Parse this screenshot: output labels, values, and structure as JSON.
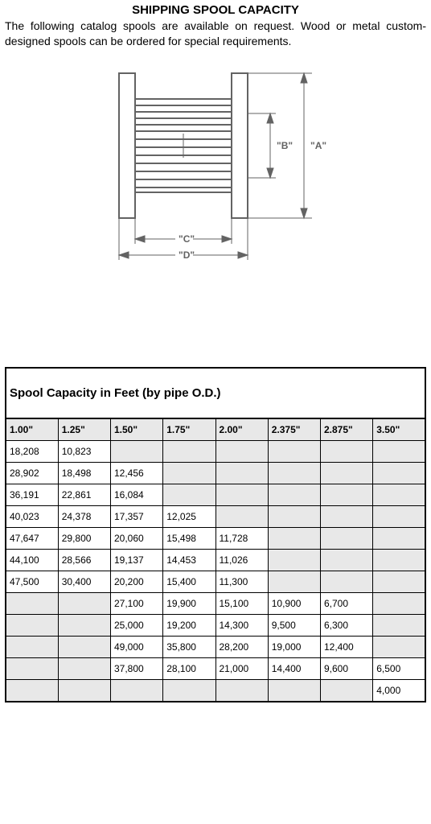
{
  "title": "SHIPPING SPOOL CAPACITY",
  "intro": "The following catalog spools are available on request. Wood or metal custom-designed spools can be ordered for special requirements.",
  "diagram": {
    "labels": {
      "A": "\"A\"",
      "B": "\"B\"",
      "C": "\"C\"",
      "D": "\"D\""
    },
    "stroke": "#636363",
    "fill": "#ffffff",
    "text_color": "#636363"
  },
  "table": {
    "caption": "Spool Capacity in Feet (by pipe O.D.)",
    "columns": [
      "1.00\"",
      "1.25\"",
      "1.50\"",
      "1.75\"",
      "2.00\"",
      "2.375\"",
      "2.875\"",
      "3.50\""
    ],
    "rows": [
      [
        "18,208",
        "10,823",
        "",
        "",
        "",
        "",
        "",
        ""
      ],
      [
        "28,902",
        "18,498",
        "12,456",
        "",
        "",
        "",
        "",
        ""
      ],
      [
        "36,191",
        "22,861",
        "16,084",
        "",
        "",
        "",
        "",
        ""
      ],
      [
        "40,023",
        "24,378",
        "17,357",
        "12,025",
        "",
        "",
        "",
        ""
      ],
      [
        "47,647",
        "29,800",
        "20,060",
        "15,498",
        "11,728",
        "",
        "",
        ""
      ],
      [
        "44,100",
        "28,566",
        "19,137",
        "14,453",
        "11,026",
        "",
        "",
        ""
      ],
      [
        "47,500",
        "30,400",
        "20,200",
        "15,400",
        "11,300",
        "",
        "",
        ""
      ],
      [
        "",
        "",
        "27,100",
        "19,900",
        "15,100",
        "10,900",
        "6,700",
        ""
      ],
      [
        "",
        "",
        "25,000",
        "19,200",
        "14,300",
        "9,500",
        "6,300",
        ""
      ],
      [
        "",
        "",
        "49,000",
        "35,800",
        "28,200",
        "19,000",
        "12,400",
        ""
      ],
      [
        "",
        "",
        "37,800",
        "28,100",
        "21,000",
        "14,400",
        "9,600",
        "6,500"
      ],
      [
        "",
        "",
        "",
        "",
        "",
        "",
        "",
        "4,000"
      ]
    ]
  }
}
